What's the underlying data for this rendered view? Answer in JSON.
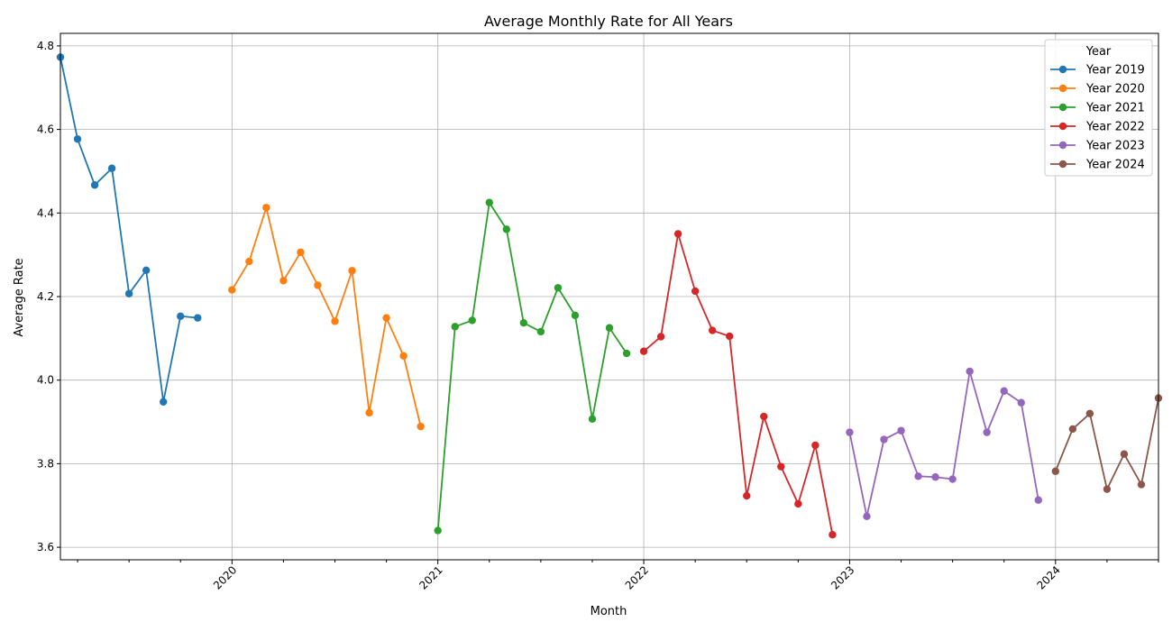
{
  "chart_data": {
    "type": "line",
    "title": "Average Monthly Rate for All Years",
    "xlabel": "Month",
    "ylabel": "Average Rate",
    "ylim": [
      3.57,
      4.83
    ],
    "yticks": [
      "3.6",
      "3.8",
      "4.0",
      "4.2",
      "4.4",
      "4.6",
      "4.8"
    ],
    "xlim": [
      "2019-03",
      "2024-07"
    ],
    "xticks": [
      "2020",
      "2021",
      "2022",
      "2023",
      "2024"
    ],
    "grid": true,
    "legend": {
      "title": "Year",
      "placement": "top-right"
    },
    "series": [
      {
        "name": "Year 2019",
        "color": "#1f77b4",
        "start": "2019-03",
        "values": [
          4.773,
          4.577,
          4.467,
          4.507,
          4.207,
          4.263,
          3.948,
          4.153,
          4.149
        ]
      },
      {
        "name": "Year 2020",
        "color": "#ff7f0e",
        "start": "2020-01",
        "values": [
          4.216,
          4.284,
          4.413,
          4.238,
          4.306,
          4.227,
          4.141,
          4.262,
          3.922,
          4.149,
          4.058,
          3.889
        ]
      },
      {
        "name": "Year 2021",
        "color": "#2ca02c",
        "start": "2021-01",
        "values": [
          3.64,
          4.128,
          4.143,
          4.425,
          4.361,
          4.137,
          4.116,
          4.221,
          4.155,
          3.907,
          4.125,
          4.064
        ]
      },
      {
        "name": "Year 2022",
        "color": "#d62728",
        "start": "2022-01",
        "values": [
          4.069,
          4.104,
          4.35,
          4.213,
          4.119,
          4.105,
          3.723,
          3.913,
          3.793,
          3.704,
          3.844,
          3.63
        ]
      },
      {
        "name": "Year 2023",
        "color": "#9467bd",
        "start": "2023-01",
        "values": [
          3.875,
          3.674,
          3.858,
          3.879,
          3.77,
          3.768,
          3.763,
          4.021,
          3.875,
          3.974,
          3.946,
          3.713
        ]
      },
      {
        "name": "Year 2024",
        "color": "#8c564b",
        "start": "2024-01",
        "values": [
          3.782,
          3.883,
          3.92,
          3.739,
          3.823,
          3.75,
          3.957
        ]
      }
    ]
  }
}
